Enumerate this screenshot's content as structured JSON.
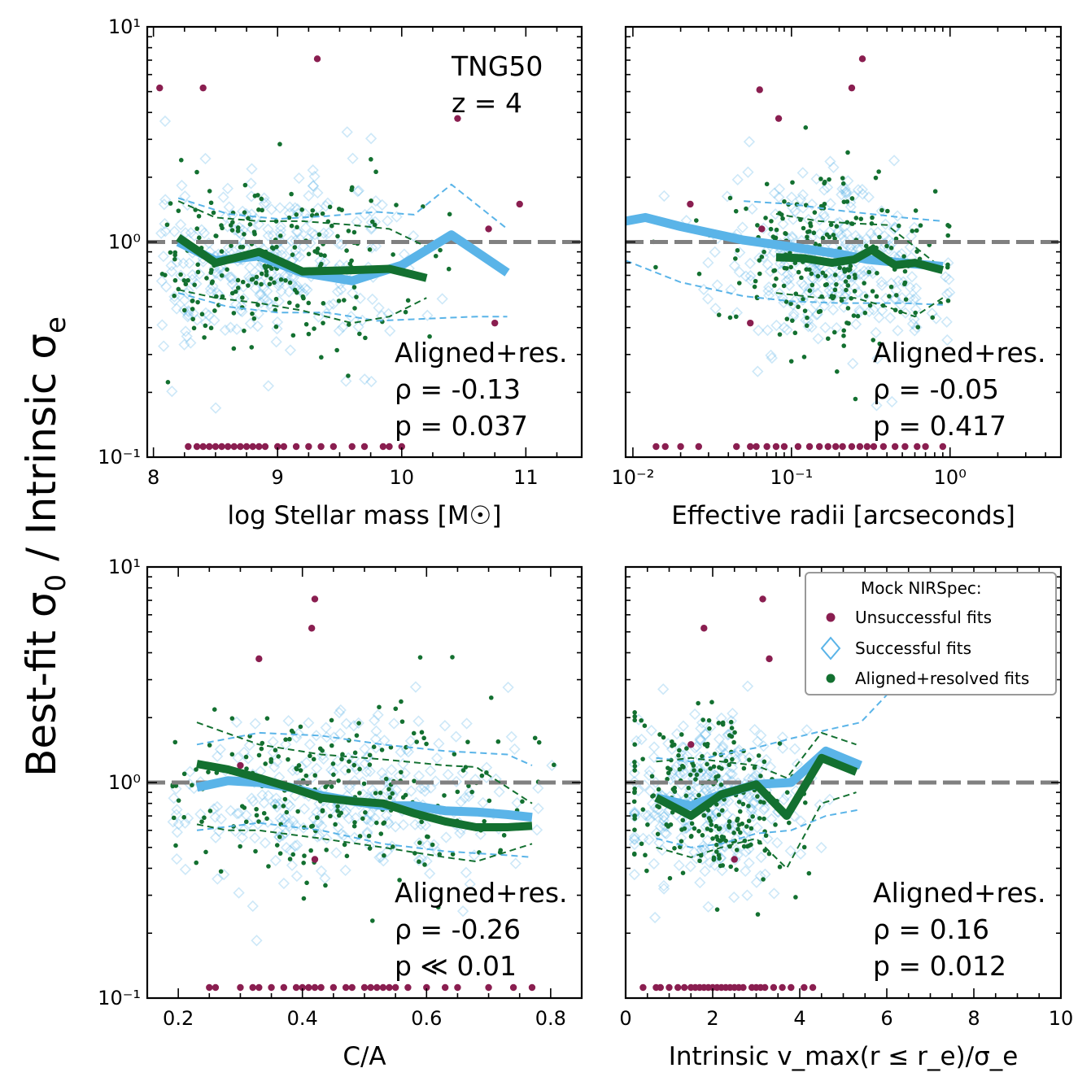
{
  "figure": {
    "y_label": "Best-fit σ₀ / Intrinsic σₑ"
  },
  "legend": {
    "title": "Mock NIRSpec:",
    "items": [
      {
        "label": "Unsuccessful fits",
        "marker": "dot",
        "color": "#8a1e50"
      },
      {
        "label": "Successful fits",
        "marker": "diamond",
        "color": "#5ab4e8"
      },
      {
        "label": "Aligned+resolved fits",
        "marker": "dot",
        "color": "#137030"
      }
    ]
  },
  "colors": {
    "unsuccessful": "#8a1e50",
    "successful": "#5ab4e8",
    "aligned": "#137030",
    "reference": "#808080"
  },
  "chart_data": [
    {
      "type": "scatter",
      "id": "mass",
      "xlabel": "log Stellar mass [M☉]",
      "x_scale": "linear",
      "xlim": [
        7.95,
        11.45
      ],
      "xticks": [
        8,
        9,
        10,
        11
      ],
      "xtick_labels": [
        "8",
        "9",
        "10",
        "11"
      ],
      "y_scale": "log",
      "ylim": [
        0.1,
        10
      ],
      "ytick_labels": [
        "10⁻¹",
        "10⁰",
        "10¹"
      ],
      "reference_line_y": 1.0,
      "annotation_lines": [
        "Aligned+res.",
        "ρ = -0.13",
        "p = 0.037"
      ],
      "sim_label": [
        "TNG50",
        "z = 4"
      ],
      "successful_median": {
        "x": [
          8.2,
          8.5,
          8.85,
          9.2,
          9.6,
          10.0,
          10.4,
          10.85
        ],
        "y": [
          1.0,
          0.82,
          0.86,
          0.72,
          0.66,
          0.78,
          1.08,
          0.72
        ]
      },
      "successful_p16": {
        "x": [
          8.2,
          8.6,
          9.0,
          9.4,
          9.8,
          10.2,
          10.6,
          10.85
        ],
        "y": [
          0.58,
          0.5,
          0.47,
          0.47,
          0.43,
          0.44,
          0.45,
          0.45
        ]
      },
      "successful_p84": {
        "x": [
          8.2,
          8.6,
          9.0,
          9.4,
          9.8,
          10.1,
          10.4,
          10.85
        ],
        "y": [
          1.6,
          1.35,
          1.28,
          1.32,
          1.38,
          1.34,
          1.85,
          1.15
        ]
      },
      "aligned_median": {
        "x": [
          8.2,
          8.5,
          8.85,
          9.2,
          9.6,
          9.9,
          10.2
        ],
        "y": [
          1.05,
          0.8,
          0.9,
          0.73,
          0.74,
          0.75,
          0.68
        ]
      },
      "aligned_p16": {
        "x": [
          8.2,
          8.5,
          8.85,
          9.2,
          9.6,
          9.9,
          10.2
        ],
        "y": [
          0.6,
          0.55,
          0.52,
          0.48,
          0.42,
          0.45,
          0.55
        ]
      },
      "aligned_p84": {
        "x": [
          8.2,
          8.5,
          8.85,
          9.2,
          9.6,
          9.9,
          10.2
        ],
        "y": [
          1.55,
          1.3,
          1.25,
          1.25,
          1.2,
          1.15,
          0.95
        ]
      },
      "unsuccessful_high": [
        [
          8.05,
          5.2
        ],
        [
          8.4,
          5.2
        ],
        [
          9.32,
          7.1
        ],
        [
          10.45,
          3.75
        ],
        [
          10.95,
          1.5
        ],
        [
          10.7,
          1.15
        ],
        [
          10.75,
          0.42
        ]
      ],
      "unsuccessful_floor_x": [
        8.28,
        8.35,
        8.4,
        8.45,
        8.5,
        8.55,
        8.6,
        8.65,
        8.7,
        8.75,
        8.8,
        8.85,
        8.9,
        9.0,
        9.05,
        9.15,
        9.25,
        9.35,
        9.45,
        9.6,
        9.7,
        9.85,
        9.9,
        10.0
      ],
      "point_cloud": {
        "x_center": 8.9,
        "x_spread": 0.55,
        "x_min": 8.05,
        "x_max": 11.2,
        "y_center": 0.8,
        "y_spread_dex": 0.2,
        "n_successful": 300,
        "n_aligned": 230
      }
    },
    {
      "type": "scatter",
      "id": "radius",
      "xlabel": "Effective radii [arcseconds]",
      "x_scale": "log",
      "xlim": [
        0.009,
        5.0
      ],
      "xticks": [
        0.01,
        0.1,
        1.0
      ],
      "xtick_labels": [
        "10⁻²",
        "10⁻¹",
        "10⁰"
      ],
      "y_scale": "log",
      "ylim": [
        0.1,
        10
      ],
      "reference_line_y": 1.0,
      "annotation_lines": [
        "Aligned+res.",
        "ρ = -0.05",
        "p = 0.417"
      ],
      "successful_median": {
        "x": [
          0.009,
          0.012,
          0.02,
          0.05,
          0.1,
          0.2,
          0.3,
          0.5,
          0.9
        ],
        "y": [
          1.25,
          1.3,
          1.18,
          1.02,
          0.95,
          0.88,
          0.83,
          0.8,
          0.77
        ]
      },
      "successful_p16": {
        "x": [
          0.009,
          0.02,
          0.05,
          0.1,
          0.2,
          0.5,
          0.9
        ],
        "y": [
          0.82,
          0.65,
          0.56,
          0.53,
          0.52,
          0.52,
          0.51
        ]
      },
      "successful_p84": {
        "x": [
          0.05,
          0.1,
          0.2,
          0.5,
          0.9
        ],
        "y": [
          1.55,
          1.5,
          1.4,
          1.3,
          1.25
        ]
      },
      "aligned_median": {
        "x": [
          0.08,
          0.12,
          0.18,
          0.25,
          0.32,
          0.45,
          0.6,
          0.9
        ],
        "y": [
          0.85,
          0.84,
          0.8,
          0.83,
          0.92,
          0.78,
          0.8,
          0.74
        ]
      },
      "aligned_p16": {
        "x": [
          0.08,
          0.15,
          0.25,
          0.4,
          0.6,
          0.9
        ],
        "y": [
          0.58,
          0.55,
          0.55,
          0.5,
          0.45,
          0.55
        ]
      },
      "aligned_p84": {
        "x": [
          0.08,
          0.15,
          0.25,
          0.4,
          0.6,
          0.9
        ],
        "y": [
          1.35,
          1.25,
          1.22,
          1.2,
          0.95,
          0.75
        ]
      },
      "unsuccessful_high": [
        [
          0.063,
          5.1
        ],
        [
          0.083,
          3.75
        ],
        [
          0.28,
          7.1
        ],
        [
          0.24,
          5.2
        ],
        [
          0.023,
          1.5
        ],
        [
          0.065,
          1.15
        ],
        [
          0.055,
          0.42
        ]
      ],
      "unsuccessful_floor_x": [
        0.014,
        0.016,
        0.02,
        0.026,
        0.045,
        0.055,
        0.06,
        0.07,
        0.08,
        0.09,
        0.11,
        0.13,
        0.15,
        0.17,
        0.19,
        0.21,
        0.24,
        0.27,
        0.3,
        0.33,
        0.38,
        0.45,
        0.52,
        0.62,
        0.7,
        0.9
      ],
      "point_cloud": {
        "x_center_log": -0.75,
        "x_spread_dex": 0.35,
        "x_min": 0.009,
        "x_max": 1.0,
        "y_center": 0.8,
        "y_spread_dex": 0.2,
        "n_successful": 300,
        "n_aligned": 230
      }
    },
    {
      "type": "scatter",
      "id": "ca",
      "xlabel": "C/A",
      "x_scale": "linear",
      "xlim": [
        0.15,
        0.85
      ],
      "xticks": [
        0.2,
        0.4,
        0.6,
        0.8
      ],
      "xtick_labels": [
        "0.2",
        "0.4",
        "0.6",
        "0.8"
      ],
      "y_scale": "log",
      "ylim": [
        0.1,
        10
      ],
      "ytick_labels": [
        "10⁻¹",
        "10⁰",
        "10¹"
      ],
      "reference_line_y": 1.0,
      "annotation_lines": [
        "Aligned+res.",
        "ρ = -0.26",
        "p ≪ 0.01"
      ],
      "successful_median": {
        "x": [
          0.23,
          0.28,
          0.33,
          0.38,
          0.43,
          0.48,
          0.53,
          0.58,
          0.63,
          0.68,
          0.73,
          0.77
        ],
        "y": [
          0.95,
          1.02,
          1.0,
          0.95,
          0.87,
          0.82,
          0.78,
          0.78,
          0.74,
          0.73,
          0.71,
          0.69
        ]
      },
      "successful_p16": {
        "x": [
          0.23,
          0.33,
          0.43,
          0.53,
          0.63,
          0.73,
          0.77
        ],
        "y": [
          0.6,
          0.65,
          0.6,
          0.52,
          0.48,
          0.46,
          0.45
        ]
      },
      "successful_p84": {
        "x": [
          0.23,
          0.33,
          0.43,
          0.53,
          0.63,
          0.73,
          0.77
        ],
        "y": [
          1.5,
          1.7,
          1.65,
          1.5,
          1.4,
          1.35,
          1.2
        ]
      },
      "aligned_median": {
        "x": [
          0.23,
          0.28,
          0.33,
          0.38,
          0.43,
          0.48,
          0.53,
          0.58,
          0.63,
          0.68,
          0.73,
          0.77
        ],
        "y": [
          1.22,
          1.15,
          1.05,
          0.95,
          0.85,
          0.82,
          0.8,
          0.72,
          0.66,
          0.62,
          0.62,
          0.63
        ]
      },
      "aligned_p16": {
        "x": [
          0.23,
          0.28,
          0.33,
          0.43,
          0.53,
          0.63,
          0.68,
          0.77
        ],
        "y": [
          0.64,
          0.6,
          0.6,
          0.55,
          0.5,
          0.45,
          0.43,
          0.52
        ]
      },
      "aligned_p84": {
        "x": [
          0.23,
          0.33,
          0.43,
          0.53,
          0.63,
          0.68,
          0.77
        ],
        "y": [
          1.9,
          1.5,
          1.35,
          1.28,
          1.2,
          1.18,
          0.8
        ]
      },
      "unsuccessful_high": [
        [
          0.42,
          7.1
        ],
        [
          0.415,
          5.2
        ],
        [
          0.33,
          3.75
        ],
        [
          0.3,
          1.2
        ],
        [
          0.42,
          0.44
        ]
      ],
      "unsuccessful_floor_x": [
        0.25,
        0.26,
        0.3,
        0.32,
        0.33,
        0.35,
        0.37,
        0.39,
        0.4,
        0.41,
        0.42,
        0.43,
        0.45,
        0.47,
        0.48,
        0.5,
        0.51,
        0.52,
        0.53,
        0.54,
        0.55,
        0.57,
        0.6,
        0.63,
        0.65,
        0.7,
        0.74,
        0.77
      ],
      "point_cloud": {
        "x_center": 0.47,
        "x_spread": 0.14,
        "x_min": 0.19,
        "x_max": 0.81,
        "y_center": 0.85,
        "y_spread_dex": 0.2,
        "n_successful": 300,
        "n_aligned": 230
      }
    },
    {
      "type": "scatter",
      "id": "vsig",
      "xlabel": "Intrinsic v_max(r ≤ r_e)/σ_e",
      "x_scale": "linear",
      "xlim": [
        0,
        10
      ],
      "xticks": [
        0,
        2,
        4,
        6,
        8,
        10
      ],
      "xtick_labels": [
        "0",
        "2",
        "4",
        "6",
        "8",
        "10"
      ],
      "y_scale": "log",
      "ylim": [
        0.1,
        10
      ],
      "reference_line_y": 1.0,
      "annotation_lines": [
        "Aligned+res.",
        "ρ = 0.16",
        "p = 0.012"
      ],
      "successful_median": {
        "x": [
          0.7,
          1.5,
          2.2,
          3.0,
          3.8,
          4.6,
          5.4
        ],
        "y": [
          0.85,
          0.78,
          0.88,
          0.98,
          1.0,
          1.4,
          1.2
        ]
      },
      "successful_p16": {
        "x": [
          0.7,
          1.5,
          2.2,
          3.0,
          3.8,
          4.6,
          5.4
        ],
        "y": [
          0.55,
          0.5,
          0.52,
          0.58,
          0.6,
          0.7,
          0.75
        ]
      },
      "successful_p84": {
        "x": [
          0.7,
          1.5,
          2.2,
          3.0,
          3.8,
          4.6,
          5.4,
          6.4
        ],
        "y": [
          1.3,
          1.25,
          1.35,
          1.45,
          1.6,
          1.75,
          1.9,
          3.1
        ]
      },
      "aligned_median": {
        "x": [
          0.7,
          1.5,
          2.2,
          3.0,
          3.7,
          4.5,
          5.3
        ],
        "y": [
          0.85,
          0.7,
          0.88,
          0.98,
          0.7,
          1.3,
          1.12
        ]
      },
      "aligned_p16": {
        "x": [
          0.7,
          1.5,
          2.2,
          3.0,
          3.7,
          4.5,
          5.3
        ],
        "y": [
          0.5,
          0.45,
          0.5,
          0.55,
          0.4,
          0.8,
          0.9
        ]
      },
      "aligned_p84": {
        "x": [
          0.7,
          1.5,
          2.2,
          3.0,
          3.7,
          4.5,
          5.3
        ],
        "y": [
          1.25,
          1.3,
          1.25,
          1.2,
          1.05,
          1.7,
          1.5
        ]
      },
      "unsuccessful_high": [
        [
          3.15,
          7.1
        ],
        [
          1.8,
          5.2
        ],
        [
          3.3,
          3.75
        ],
        [
          1.5,
          1.5
        ],
        [
          2.5,
          0.44
        ]
      ],
      "unsuccessful_floor_x": [
        0.4,
        0.7,
        0.8,
        1.0,
        1.2,
        1.35,
        1.5,
        1.6,
        1.7,
        1.8,
        1.9,
        2.0,
        2.1,
        2.2,
        2.3,
        2.4,
        2.5,
        2.6,
        2.7,
        2.9,
        3.0,
        3.1,
        3.2,
        3.4,
        3.6,
        3.8,
        4.1,
        4.3
      ],
      "point_cloud": {
        "x_center": 1.9,
        "x_spread": 1.0,
        "x_min": 0.2,
        "x_max": 6.5,
        "y_center": 0.8,
        "y_spread_dex": 0.2,
        "n_successful": 300,
        "n_aligned": 230
      }
    }
  ]
}
